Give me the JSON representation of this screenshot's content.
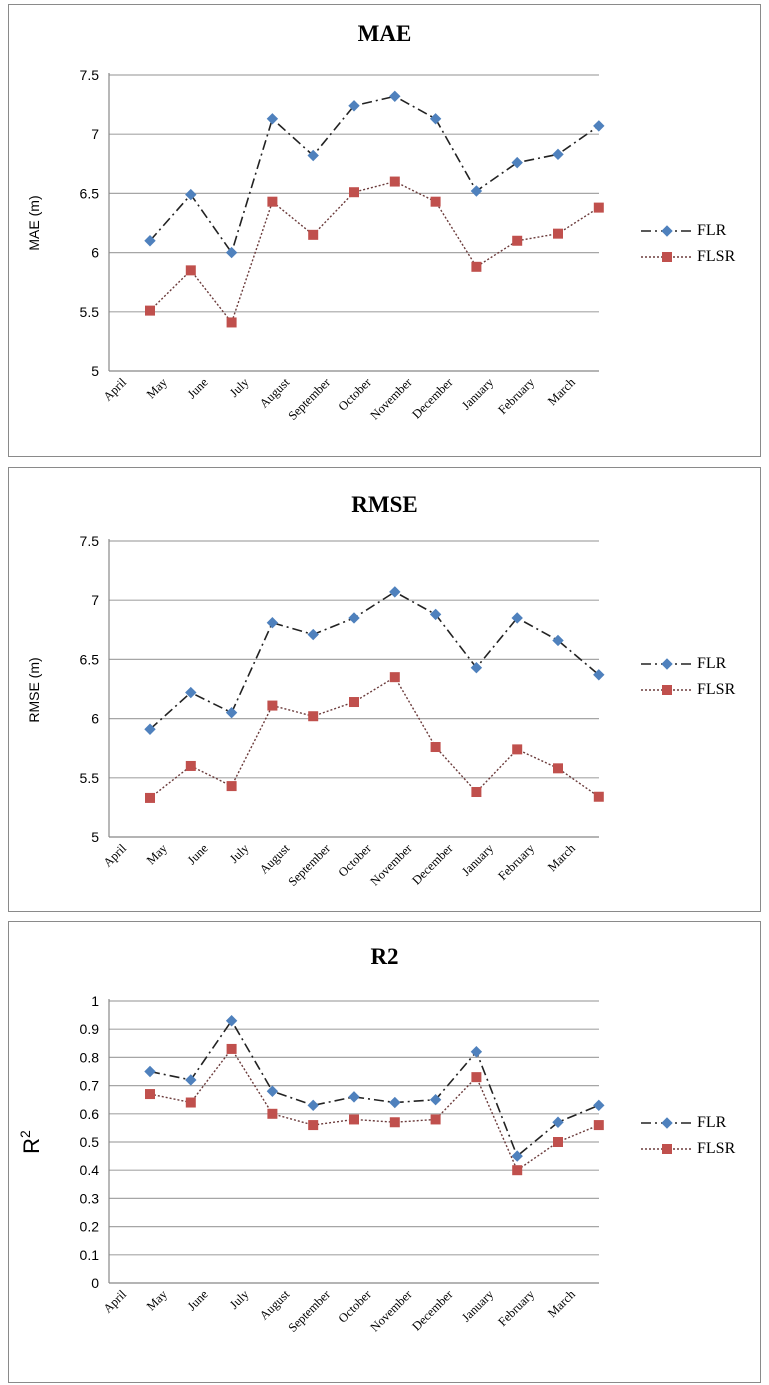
{
  "colors": {
    "flr": "#4f81bd",
    "flsr": "#c0504d",
    "grid": "#a6a6a6",
    "axis": "#888888",
    "frame": "#8a8a8a"
  },
  "chart_data": [
    {
      "id": "mae",
      "type": "line",
      "title": "MAE",
      "xlabel": "",
      "ylabel": "MAE (m)",
      "ylim": [
        5,
        7.5
      ],
      "ytick_step": 0.5,
      "yticks": [
        "5",
        "5.5",
        "6",
        "6.5",
        "7",
        "7.5"
      ],
      "grid": true,
      "legend_placement": "right",
      "categories": [
        "April",
        "May",
        "June",
        "July",
        "August",
        "September",
        "October",
        "November",
        "December",
        "January",
        "February",
        "March"
      ],
      "series": [
        {
          "name": "FLR",
          "marker": "diamond",
          "line": "dash-dot",
          "values": [
            6.1,
            6.49,
            6.0,
            7.13,
            6.82,
            7.24,
            7.32,
            7.13,
            6.52,
            6.76,
            6.83,
            7.07
          ]
        },
        {
          "name": "FLSR",
          "marker": "square",
          "line": "dotted",
          "values": [
            5.51,
            5.85,
            5.41,
            6.43,
            6.15,
            6.51,
            6.6,
            6.43,
            5.88,
            6.1,
            6.16,
            6.38
          ]
        }
      ]
    },
    {
      "id": "rmse",
      "type": "line",
      "title": "RMSE",
      "xlabel": "",
      "ylabel": "RMSE (m)",
      "ylim": [
        5,
        7.5
      ],
      "ytick_step": 0.5,
      "yticks": [
        "5",
        "5.5",
        "6",
        "6.5",
        "7",
        "7.5"
      ],
      "grid": true,
      "legend_placement": "right",
      "categories": [
        "April",
        "May",
        "June",
        "July",
        "August",
        "September",
        "October",
        "November",
        "December",
        "January",
        "February",
        "March"
      ],
      "series": [
        {
          "name": "FLR",
          "marker": "diamond",
          "line": "dash-dot",
          "values": [
            5.91,
            6.22,
            6.05,
            6.81,
            6.71,
            6.85,
            7.07,
            6.88,
            6.43,
            6.85,
            6.66,
            6.37
          ]
        },
        {
          "name": "FLSR",
          "marker": "square",
          "line": "dotted",
          "values": [
            5.33,
            5.6,
            5.43,
            6.11,
            6.02,
            6.14,
            6.35,
            5.76,
            5.38,
            5.74,
            5.58,
            5.34
          ]
        }
      ]
    },
    {
      "id": "r2",
      "type": "line",
      "title": "R2",
      "xlabel": "",
      "ylabel": "R",
      "ylabel_superscript": "2",
      "ylim": [
        0,
        1
      ],
      "ytick_step": 0.1,
      "yticks": [
        "0",
        "0.1",
        "0.2",
        "0.3",
        "0.4",
        "0.5",
        "0.6",
        "0.7",
        "0.8",
        "0.9",
        "1"
      ],
      "grid": true,
      "legend_placement": "right",
      "categories": [
        "April",
        "May",
        "June",
        "July",
        "August",
        "September",
        "October",
        "November",
        "December",
        "January",
        "February",
        "March"
      ],
      "series": [
        {
          "name": "FLR",
          "marker": "diamond",
          "line": "dash-dot",
          "values": [
            0.75,
            0.72,
            0.93,
            0.68,
            0.63,
            0.66,
            0.64,
            0.65,
            0.82,
            0.45,
            0.57,
            0.63
          ]
        },
        {
          "name": "FLSR",
          "marker": "square",
          "line": "dotted",
          "values": [
            0.67,
            0.64,
            0.83,
            0.6,
            0.56,
            0.58,
            0.57,
            0.58,
            0.73,
            0.4,
            0.5,
            0.56
          ]
        }
      ]
    }
  ]
}
